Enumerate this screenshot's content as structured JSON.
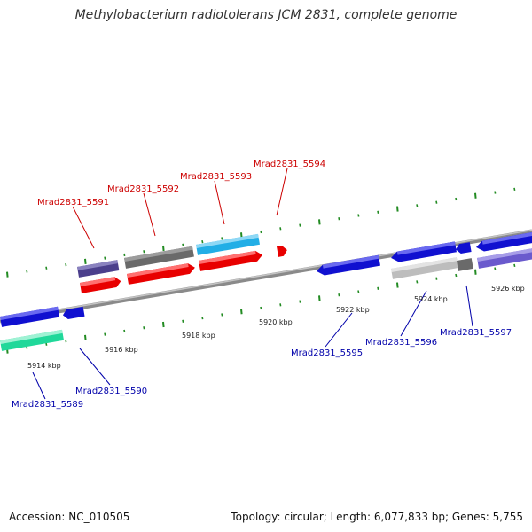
{
  "title": "Methylobacterium radiotolerans JCM 2831, complete genome",
  "footer": {
    "accession": "Accession: NC_010505",
    "summary": "Topology: circular; Length: 6,077,833 bp; Genes: 5,755"
  },
  "colors": {
    "backbone": "#8a8a8a",
    "tick": "#228b22",
    "top_label": "#cc0000",
    "bottom_label": "#0000aa"
  },
  "scale_labels": [
    "5914 kbp",
    "5916 kbp",
    "5918 kbp",
    "5920 kbp",
    "5922 kbp",
    "5924 kbp",
    "5926 kbp"
  ],
  "top_genes": [
    "Mrad2831_5591",
    "Mrad2831_5592",
    "Mrad2831_5593",
    "Mrad2831_5594"
  ],
  "bottom_genes": [
    "Mrad2831_5589",
    "Mrad2831_5590",
    "Mrad2831_5595",
    "Mrad2831_5596",
    "Mrad2831_5597"
  ]
}
